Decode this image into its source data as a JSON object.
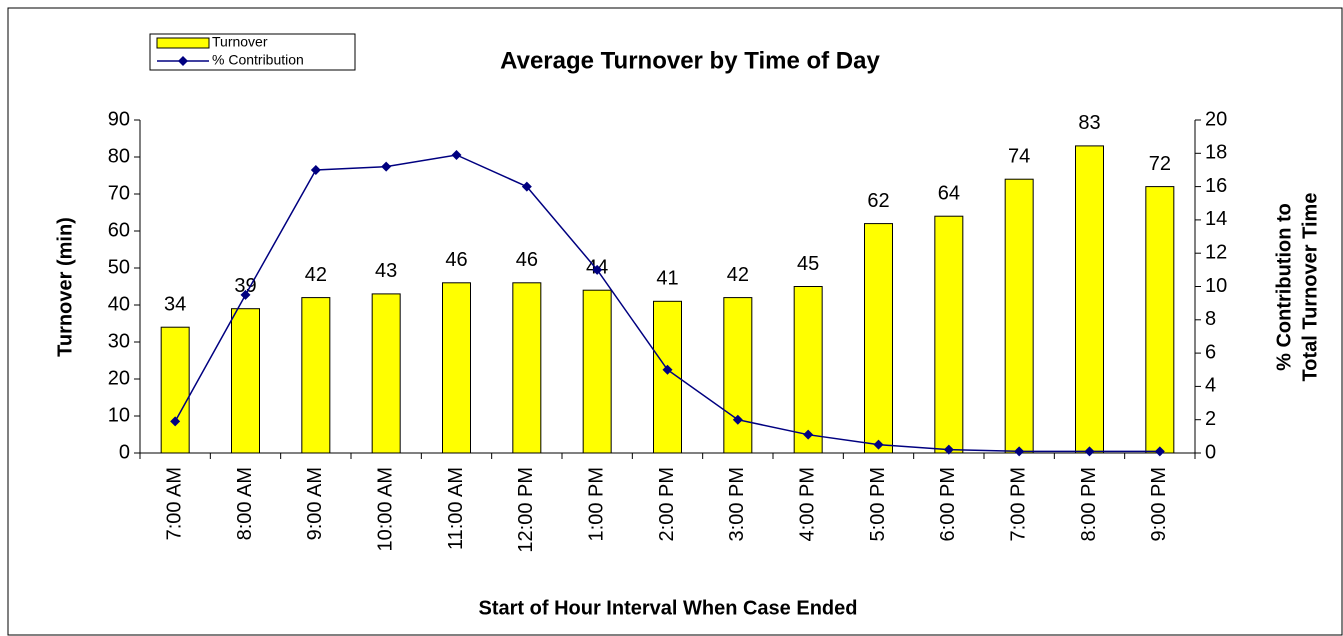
{
  "chart_data": {
    "type": "bar",
    "title": "Average Turnover by Time of Day",
    "xlabel": "Start of Hour Interval When Case Ended",
    "ylabel": "Turnover (min)",
    "y2label": [
      "% Contribution to",
      "Total Turnover Time"
    ],
    "categories": [
      "7:00 AM",
      "8:00 AM",
      "9:00 AM",
      "10:00 AM",
      "11:00 AM",
      "12:00 PM",
      "1:00 PM",
      "2:00 PM",
      "3:00 PM",
      "4:00 PM",
      "5:00 PM",
      "6:00 PM",
      "7:00 PM",
      "8:00 PM",
      "9:00 PM"
    ],
    "series": [
      {
        "name": "Turnover",
        "type": "bar",
        "color": "#ffff00",
        "values": [
          34,
          39,
          42,
          43,
          46,
          46,
          44,
          41,
          42,
          45,
          62,
          64,
          74,
          83,
          72
        ]
      },
      {
        "name": "% Contribution",
        "type": "line",
        "axis": "y2",
        "color": "#000080",
        "values": [
          1.9,
          9.5,
          17,
          17.2,
          17.9,
          16,
          11,
          5,
          2,
          1.1,
          0.5,
          0.2,
          0.1,
          0.1,
          0.1
        ]
      }
    ],
    "ylim": [
      0,
      90
    ],
    "yticks": [
      0,
      10,
      20,
      30,
      40,
      50,
      60,
      70,
      80,
      90
    ],
    "y2lim": [
      0,
      20
    ],
    "y2ticks": [
      0,
      2,
      4,
      6,
      8,
      10,
      12,
      14,
      16,
      18,
      20
    ],
    "legend": "top-left",
    "grid": false
  }
}
